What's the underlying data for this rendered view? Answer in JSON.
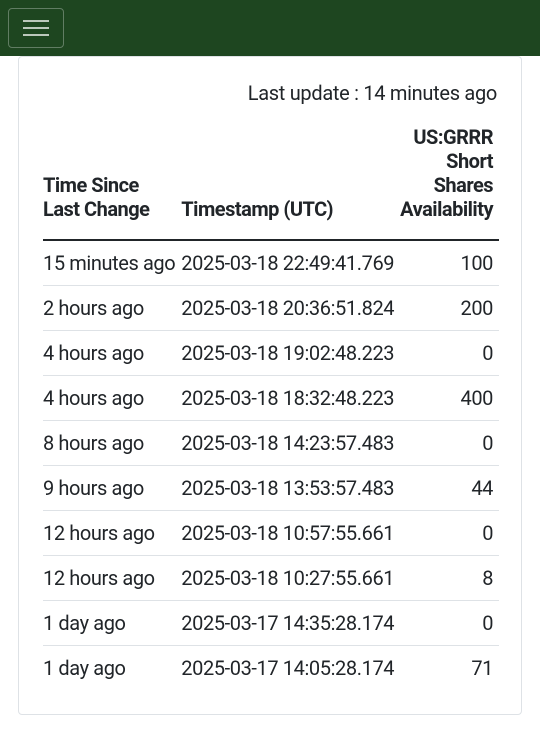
{
  "navbar": {
    "menu_icon": "hamburger"
  },
  "last_update": {
    "prefix": "Last update : ",
    "value": "14 minutes ago"
  },
  "table": {
    "headers": {
      "col1": "Time Since Last Change",
      "col2": "Timestamp (UTC)",
      "col3_line1": "US:GRRR",
      "col3_line2": "Short Shares",
      "col3_line3": "Availability"
    },
    "rows": [
      {
        "time_since": "15 minutes ago",
        "timestamp": "2025-03-18 22:49:41.769",
        "availability": "100"
      },
      {
        "time_since": "2 hours ago",
        "timestamp": "2025-03-18 20:36:51.824",
        "availability": "200"
      },
      {
        "time_since": "4 hours ago",
        "timestamp": "2025-03-18 19:02:48.223",
        "availability": "0"
      },
      {
        "time_since": "4 hours ago",
        "timestamp": "2025-03-18 18:32:48.223",
        "availability": "400"
      },
      {
        "time_since": "8 hours ago",
        "timestamp": "2025-03-18 14:23:57.483",
        "availability": "0"
      },
      {
        "time_since": "9 hours ago",
        "timestamp": "2025-03-18 13:53:57.483",
        "availability": "44"
      },
      {
        "time_since": "12 hours ago",
        "timestamp": "2025-03-18 10:57:55.661",
        "availability": "0"
      },
      {
        "time_since": "12 hours ago",
        "timestamp": "2025-03-18 10:27:55.661",
        "availability": "8"
      },
      {
        "time_since": "1 day ago",
        "timestamp": "2025-03-17 14:35:28.174",
        "availability": "0"
      },
      {
        "time_since": "1 day ago",
        "timestamp": "2025-03-17 14:05:28.174",
        "availability": "71"
      }
    ]
  },
  "colors": {
    "navbar_bg": "#1e4620",
    "border": "#dee2e6",
    "text": "#212529"
  }
}
